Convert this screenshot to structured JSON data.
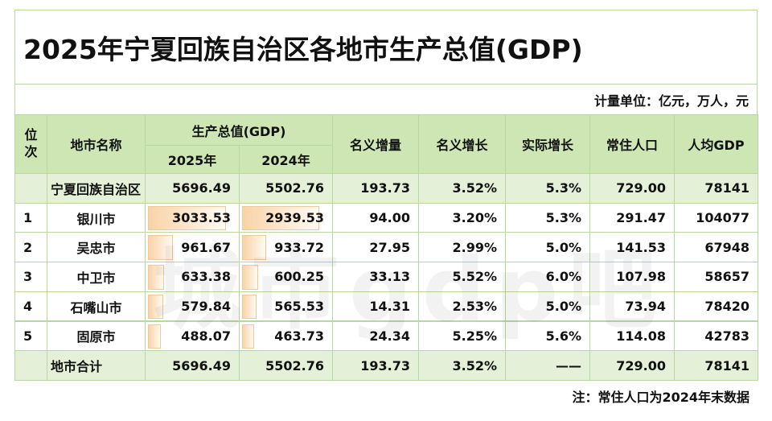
{
  "title": "2025年宁夏回族自治区各地市生产总值(GDP)",
  "unit_note": "计量单位：亿元，万人，元",
  "header": {
    "rank": "位次",
    "name": "地市名称",
    "gdp": "生产总值(GDP)",
    "year_2025": "2025年",
    "year_2024": "2024年",
    "nominal_increase": "名义增量",
    "nominal_growth": "名义增长",
    "real_growth": "实际增长",
    "population": "常住人口",
    "gdp_per_capita": "人均GDP"
  },
  "region_row": [
    "宁夏回族自治区",
    "5696.49",
    "5502.76",
    "193.73",
    "3.52%",
    "5.3%",
    "729.00",
    "78141"
  ],
  "rows": [
    [
      "1",
      "银川市",
      "3033.53",
      "2939.53",
      "94.00",
      "3.20%",
      "5.3%",
      "291.47",
      "104077"
    ],
    [
      "2",
      "吴忠市",
      "961.67",
      "933.72",
      "27.95",
      "2.99%",
      "5.0%",
      "141.53",
      "67948"
    ],
    [
      "3",
      "中卫市",
      "633.38",
      "600.25",
      "33.13",
      "5.52%",
      "6.0%",
      "107.98",
      "58657"
    ],
    [
      "4",
      "石嘴山市",
      "579.84",
      "565.53",
      "14.31",
      "2.53%",
      "5.0%",
      "73.94",
      "78420"
    ],
    [
      "5",
      "固原市",
      "488.07",
      "463.73",
      "24.34",
      "5.25%",
      "5.6%",
      "114.08",
      "42783"
    ]
  ],
  "total_row": [
    "地市合计",
    "5696.49",
    "5502.76",
    "193.73",
    "3.52%",
    "——",
    "729.00",
    "78141"
  ],
  "footnote": "注：常住人口为2024年末数据",
  "watermark": "城市gdp吧"
}
